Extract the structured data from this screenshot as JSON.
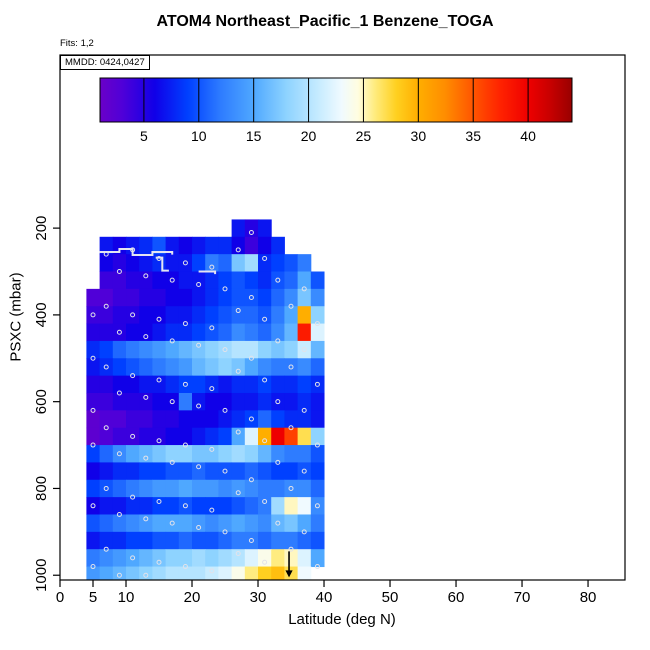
{
  "annotations": {
    "fits": "Fits: 1,2",
    "mmdd": "MMDD: 0424,0427"
  },
  "chart_data": {
    "type": "heatmap",
    "title": "ATOM4 Northeast_Pacific_1 Benzene_TOGA",
    "xlabel": "Latitude (deg N)",
    "ylabel": "PSXC (mbar)",
    "x_axis": {
      "min": 0,
      "max": 85.6,
      "ticks": [
        0,
        5,
        10,
        20,
        30,
        40,
        50,
        60,
        70,
        80
      ]
    },
    "y_axis": {
      "top_value": -199,
      "bottom_value": 1011,
      "ticks": [
        200,
        400,
        600,
        800,
        1000
      ],
      "reversed": true
    },
    "colorbar": {
      "min": 1,
      "max": 44,
      "ticks": [
        5,
        10,
        15,
        20,
        25,
        30,
        35,
        40
      ]
    },
    "colormap": [
      [
        1,
        "#6A00C8"
      ],
      [
        3,
        "#5000D8"
      ],
      [
        6,
        "#1000E8"
      ],
      [
        9,
        "#0040FF"
      ],
      [
        12,
        "#2E7CFF"
      ],
      [
        15,
        "#4FA8FF"
      ],
      [
        18,
        "#8ED3FF"
      ],
      [
        21,
        "#C8ECFF"
      ],
      [
        23,
        "#F0FAFF"
      ],
      [
        24.5,
        "#FFFDE0"
      ],
      [
        26,
        "#FFEC80"
      ],
      [
        28,
        "#FFD020"
      ],
      [
        30,
        "#FFAE00"
      ],
      [
        32.5,
        "#FF8C00"
      ],
      [
        35,
        "#FF5500"
      ],
      [
        37.5,
        "#FF2200"
      ],
      [
        40,
        "#EE0000"
      ],
      [
        42,
        "#C80000"
      ],
      [
        44,
        "#990000"
      ]
    ],
    "lat_edges": [
      4,
      6,
      8,
      10,
      12,
      14,
      16,
      18,
      20,
      22,
      24,
      26,
      28,
      30,
      32,
      34,
      36,
      38,
      40
    ],
    "p_edges": [
      180,
      220,
      260,
      300,
      340,
      380,
      420,
      460,
      500,
      540,
      580,
      620,
      660,
      700,
      740,
      780,
      820,
      860,
      900,
      940,
      980,
      1010
    ],
    "values": [
      [
        null,
        null,
        null,
        null,
        null,
        null,
        null,
        null,
        null,
        null,
        null,
        7,
        5,
        7,
        null,
        null,
        null,
        null
      ],
      [
        null,
        7,
        6,
        7,
        8,
        10,
        7,
        6,
        7,
        8,
        8,
        6,
        4,
        6,
        8,
        null,
        null,
        null
      ],
      [
        null,
        6,
        5,
        6,
        7,
        8,
        7,
        7,
        9,
        12,
        11,
        17,
        19,
        8,
        9,
        10,
        12,
        null
      ],
      [
        null,
        4,
        4,
        5,
        5,
        6,
        6,
        7,
        7,
        8,
        9,
        10,
        9,
        8,
        10,
        11,
        15,
        10
      ],
      [
        3,
        3,
        4,
        4,
        5,
        5,
        6,
        6,
        7,
        8,
        9,
        10,
        10,
        9,
        11,
        13,
        17,
        13
      ],
      [
        4,
        4,
        5,
        5,
        6,
        6,
        7,
        7,
        8,
        9,
        10,
        11,
        11,
        10,
        12,
        15,
        30,
        18
      ],
      [
        5,
        5,
        5,
        6,
        6,
        7,
        8,
        8,
        9,
        10,
        11,
        13,
        12,
        11,
        13,
        16,
        38,
        22
      ],
      [
        8,
        9,
        11,
        12,
        13,
        14,
        15,
        16,
        17,
        18,
        19,
        20,
        20,
        18,
        17,
        18,
        21,
        16
      ],
      [
        7,
        8,
        9,
        10,
        11,
        12,
        13,
        14,
        16,
        17,
        18,
        17,
        15,
        13,
        12,
        12,
        13,
        11
      ],
      [
        5,
        5,
        6,
        6,
        7,
        7,
        8,
        9,
        9,
        8,
        7,
        8,
        8,
        9,
        8,
        8,
        9,
        8
      ],
      [
        4,
        4,
        5,
        5,
        5,
        6,
        6,
        12,
        7,
        6,
        6,
        7,
        7,
        8,
        7,
        7,
        8,
        7
      ],
      [
        2,
        3,
        3,
        4,
        4,
        5,
        5,
        6,
        6,
        6,
        7,
        8,
        9,
        11,
        9,
        8,
        8,
        7
      ],
      [
        2,
        3,
        4,
        4,
        5,
        5,
        6,
        6,
        7,
        8,
        9,
        15,
        22,
        30,
        40,
        36,
        27,
        18
      ],
      [
        9,
        11,
        13,
        15,
        16,
        17,
        18,
        18,
        17,
        17,
        18,
        19,
        18,
        16,
        13,
        12,
        12,
        10
      ],
      [
        6,
        7,
        8,
        8,
        9,
        9,
        10,
        10,
        11,
        10,
        10,
        10,
        11,
        10,
        9,
        9,
        10,
        9
      ],
      [
        9,
        10,
        11,
        12,
        13,
        14,
        14,
        15,
        14,
        14,
        13,
        14,
        13,
        12,
        12,
        13,
        13,
        11
      ],
      [
        6,
        7,
        7,
        8,
        8,
        9,
        9,
        10,
        9,
        9,
        9,
        10,
        11,
        12,
        19,
        25,
        23,
        13
      ],
      [
        10,
        11,
        12,
        13,
        14,
        15,
        15,
        15,
        14,
        13,
        14,
        15,
        14,
        13,
        16,
        17,
        15,
        12
      ],
      [
        7,
        8,
        8,
        9,
        9,
        10,
        10,
        11,
        10,
        10,
        11,
        12,
        12,
        11,
        12,
        12,
        11,
        10
      ],
      [
        12,
        13,
        14,
        15,
        16,
        17,
        18,
        18,
        19,
        18,
        19,
        20,
        22,
        24,
        26,
        25,
        22,
        15
      ],
      [
        14,
        15,
        16,
        17,
        18,
        19,
        20,
        20,
        20,
        21,
        22,
        24,
        26,
        28,
        29,
        27,
        23,
        null
      ]
    ],
    "markers": [
      [
        5,
        400
      ],
      [
        5,
        500
      ],
      [
        5,
        620
      ],
      [
        5,
        700
      ],
      [
        5,
        840
      ],
      [
        5,
        980
      ],
      [
        7,
        260
      ],
      [
        7,
        380
      ],
      [
        7,
        520
      ],
      [
        7,
        660
      ],
      [
        7,
        800
      ],
      [
        7,
        940
      ],
      [
        9,
        300
      ],
      [
        9,
        440
      ],
      [
        9,
        580
      ],
      [
        9,
        720
      ],
      [
        9,
        860
      ],
      [
        9,
        1000
      ],
      [
        11,
        250
      ],
      [
        11,
        400
      ],
      [
        11,
        540
      ],
      [
        11,
        680
      ],
      [
        11,
        820
      ],
      [
        11,
        960
      ],
      [
        13,
        310
      ],
      [
        13,
        450
      ],
      [
        13,
        590
      ],
      [
        13,
        730
      ],
      [
        13,
        870
      ],
      [
        13,
        1000
      ],
      [
        15,
        270
      ],
      [
        15,
        410
      ],
      [
        15,
        550
      ],
      [
        15,
        690
      ],
      [
        15,
        830
      ],
      [
        15,
        970
      ],
      [
        17,
        320
      ],
      [
        17,
        460
      ],
      [
        17,
        600
      ],
      [
        17,
        740
      ],
      [
        17,
        880
      ],
      [
        19,
        280
      ],
      [
        19,
        420
      ],
      [
        19,
        560
      ],
      [
        19,
        700
      ],
      [
        19,
        840
      ],
      [
        19,
        980
      ],
      [
        21,
        330
      ],
      [
        21,
        470
      ],
      [
        21,
        610
      ],
      [
        21,
        750
      ],
      [
        21,
        890
      ],
      [
        23,
        290
      ],
      [
        23,
        430
      ],
      [
        23,
        570
      ],
      [
        23,
        710
      ],
      [
        23,
        850
      ],
      [
        23,
        990
      ],
      [
        25,
        340
      ],
      [
        25,
        480
      ],
      [
        25,
        620
      ],
      [
        25,
        760
      ],
      [
        25,
        900
      ],
      [
        27,
        250
      ],
      [
        27,
        390
      ],
      [
        27,
        530
      ],
      [
        27,
        670
      ],
      [
        27,
        810
      ],
      [
        27,
        950
      ],
      [
        29,
        210
      ],
      [
        29,
        360
      ],
      [
        29,
        500
      ],
      [
        29,
        640
      ],
      [
        29,
        780
      ],
      [
        29,
        920
      ],
      [
        31,
        270
      ],
      [
        31,
        410
      ],
      [
        31,
        550
      ],
      [
        31,
        690
      ],
      [
        31,
        830
      ],
      [
        31,
        970
      ],
      [
        33,
        320
      ],
      [
        33,
        460
      ],
      [
        33,
        600
      ],
      [
        33,
        740
      ],
      [
        33,
        880
      ],
      [
        35,
        380
      ],
      [
        35,
        520
      ],
      [
        35,
        660
      ],
      [
        35,
        800
      ],
      [
        35,
        940
      ],
      [
        37,
        340
      ],
      [
        37,
        480
      ],
      [
        37,
        620
      ],
      [
        37,
        760
      ],
      [
        37,
        900
      ],
      [
        39,
        420
      ],
      [
        39,
        560
      ],
      [
        39,
        700
      ],
      [
        39,
        840
      ],
      [
        39,
        980
      ]
    ],
    "contour_lines": [
      [
        [
          6,
          255
        ],
        [
          9,
          255
        ],
        [
          9,
          248
        ],
        [
          11,
          248
        ],
        [
          11,
          262
        ],
        [
          14,
          262
        ],
        [
          14,
          255
        ],
        [
          17,
          255
        ],
        [
          17,
          261
        ]
      ],
      [
        [
          14.5,
          268
        ],
        [
          15.5,
          268
        ],
        [
          15.5,
          298
        ],
        [
          16.5,
          298
        ]
      ],
      [
        [
          21,
          300
        ],
        [
          23.5,
          300
        ],
        [
          23.5,
          306
        ]
      ]
    ],
    "arrow": {
      "lat": 34.7,
      "p_from": 945,
      "p_to": 1005
    },
    "marker_color": "#E2E2EA",
    "contour_color": "#E4E4F2",
    "axis_color": "#000000"
  }
}
